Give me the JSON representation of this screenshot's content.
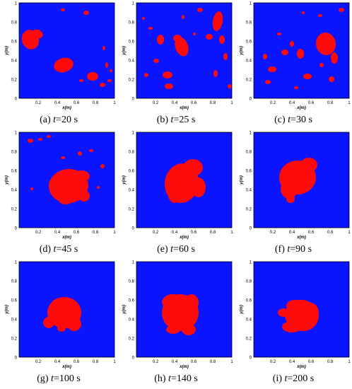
{
  "figure": {
    "axes": {
      "xlabel": "x(m)",
      "ylabel": "y(m)",
      "xticks": [
        "0.2",
        "0.4",
        "0.6",
        "0.8",
        "1"
      ],
      "yticks": [
        "0",
        "0.2",
        "0.4",
        "0.6",
        "0.8",
        "1"
      ]
    },
    "colors": {
      "background": "#0a14ff",
      "phase": "#ff0a0a"
    },
    "panels": [
      {
        "letter": "(a) ",
        "t": "t",
        "rest": "=20 s"
      },
      {
        "letter": "(b) ",
        "t": "t",
        "rest": "=25 s"
      },
      {
        "letter": "(c) ",
        "t": "t",
        "rest": "=30 s"
      },
      {
        "letter": "(d) ",
        "t": "t",
        "rest": "=45 s"
      },
      {
        "letter": "(e) ",
        "t": "t",
        "rest": "=60 s"
      },
      {
        "letter": "(f) ",
        "t": "t",
        "rest": "=90 s"
      },
      {
        "letter": "(g) ",
        "t": "t",
        "rest": "=100 s"
      },
      {
        "letter": "(h) ",
        "t": "t",
        "rest": "=140 s"
      },
      {
        "letter": "(i) ",
        "t": "t",
        "rest": "=200 s"
      }
    ]
  }
}
